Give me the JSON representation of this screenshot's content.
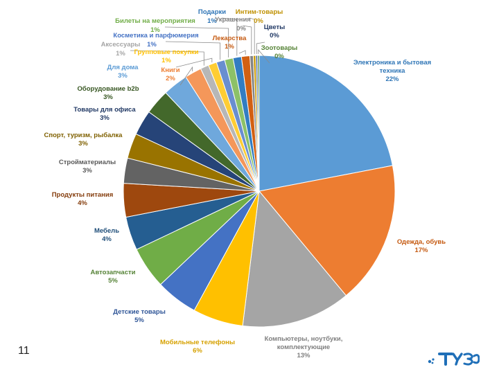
{
  "slide": {
    "page_number": "11"
  },
  "logo": {
    "name": "company-logo",
    "text": "ТУЭС",
    "color": "#1f6fb8"
  },
  "chart_data": {
    "type": "pie",
    "title": "",
    "slices": [
      {
        "label": "Электроника и бытовая техника",
        "value": 22,
        "display": "22%",
        "color": "#5b9bd5"
      },
      {
        "label": "Одежда, обувь",
        "value": 17,
        "display": "17%",
        "color": "#ed7d31"
      },
      {
        "label": "Компьютеры, ноутбуки, комплектующие",
        "value": 13,
        "display": "13%",
        "color": "#a5a5a5"
      },
      {
        "label": "Мобильные телефоны",
        "value": 6,
        "display": "6%",
        "color": "#ffc000"
      },
      {
        "label": "Детские товары",
        "value": 5,
        "display": "5%",
        "color": "#4472c4"
      },
      {
        "label": "Автозапчасти",
        "value": 5,
        "display": "5%",
        "color": "#70ad47"
      },
      {
        "label": "Мебель",
        "value": 4,
        "display": "4%",
        "color": "#255e91"
      },
      {
        "label": "Продукты питания",
        "value": 4,
        "display": "4%",
        "color": "#9e480e"
      },
      {
        "label": "Стройматериалы",
        "value": 3,
        "display": "3%",
        "color": "#636363"
      },
      {
        "label": "Спорт, туризм, рыбалка",
        "value": 3,
        "display": "3%",
        "color": "#997300"
      },
      {
        "label": "Товары для офиса",
        "value": 3,
        "display": "3%",
        "color": "#264478"
      },
      {
        "label": "Оборудование b2b",
        "value": 3,
        "display": "3%",
        "color": "#43682b"
      },
      {
        "label": "Для дома",
        "value": 3,
        "display": "3%",
        "color": "#6fa8dc"
      },
      {
        "label": "Книги",
        "value": 2,
        "display": "2%",
        "color": "#f4975a"
      },
      {
        "label": "Аксессуары",
        "value": 1,
        "display": "1%",
        "color": "#b7b7b7"
      },
      {
        "label": "Групповые покупки",
        "value": 1,
        "display": "1%",
        "color": "#ffcd33"
      },
      {
        "label": "Косметика и парфюмерия",
        "value": 1,
        "display": "1%",
        "color": "#698ed0"
      },
      {
        "label": "Билеты на мероприятия",
        "value": 1,
        "display": "1%",
        "color": "#8cc168"
      },
      {
        "label": "Подарки",
        "value": 1,
        "display": "1%",
        "color": "#327dc2"
      },
      {
        "label": "Лекарства",
        "value": 1,
        "display": "1%",
        "color": "#d26012"
      },
      {
        "label": "Украшения",
        "value": 0.4,
        "display": "0%",
        "color": "#848484"
      },
      {
        "label": "Интим-товары",
        "value": 0.3,
        "display": "0%",
        "color": "#cc9a06"
      },
      {
        "label": "Цветы",
        "value": 0.2,
        "display": "0%",
        "color": "#335aa1"
      },
      {
        "label": "Зоотовары",
        "value": 0.2,
        "display": "0%",
        "color": "#5a8a39"
      }
    ],
    "start_angle_deg": 0,
    "direction": "clockwise",
    "legend": "none"
  }
}
